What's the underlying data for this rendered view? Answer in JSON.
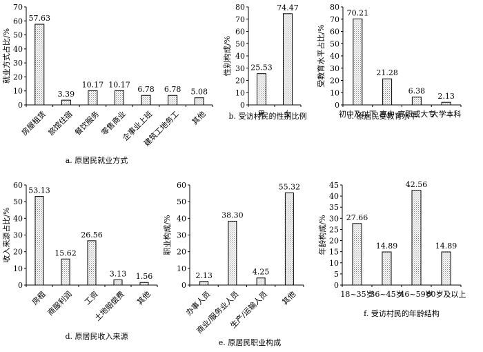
{
  "chart_data": [
    {
      "id": "a",
      "type": "bar",
      "caption": "a. 原居民就业方式",
      "ylabel": "就业方式占比/%",
      "ylim": [
        0,
        70
      ],
      "yticks": [
        0,
        10,
        20,
        30,
        40,
        50,
        60,
        70
      ],
      "categories": [
        "房屋租赁",
        "旅馆住宿",
        "餐饮服务",
        "零售商业",
        "企事业上班",
        "建筑工地务工",
        "其他"
      ],
      "values": [
        57.63,
        3.39,
        10.17,
        10.17,
        6.78,
        6.78,
        5.08
      ],
      "value_labels": [
        "57.63",
        "3.39",
        "10.17",
        "10.17",
        "6.78",
        "6.78",
        "5.08"
      ],
      "x_label_rotation": "45deg"
    },
    {
      "id": "b",
      "type": "bar",
      "caption": "b. 受访村民的性别比例",
      "ylabel": "性别构成/%",
      "ylim": [
        0,
        80
      ],
      "yticks": [
        0,
        10,
        20,
        30,
        40,
        50,
        60,
        70,
        80
      ],
      "categories": [
        "男",
        "女"
      ],
      "values": [
        25.53,
        74.47
      ],
      "value_labels": [
        "25.53",
        "74.47"
      ],
      "x_label_rotation": "none"
    },
    {
      "id": "c",
      "type": "bar",
      "caption": "c. 原居民受教育水平",
      "ylabel": "受教育水平占比/%",
      "ylim": [
        0,
        80
      ],
      "yticks": [
        0,
        10,
        20,
        30,
        40,
        50,
        60,
        70,
        80
      ],
      "categories": [
        "初中及以下",
        "高中",
        "高职或大专",
        "大学本科"
      ],
      "values": [
        70.21,
        21.28,
        6.38,
        2.13
      ],
      "value_labels": [
        "70.21",
        "21.28",
        "6.38",
        "2.13"
      ],
      "x_label_rotation": "none"
    },
    {
      "id": "d",
      "type": "bar",
      "caption": "d. 原居民收入来源",
      "ylabel": "收入来源占比/%",
      "ylim": [
        0,
        60
      ],
      "yticks": [
        0,
        10,
        20,
        30,
        40,
        50,
        60
      ],
      "categories": [
        "房租",
        "商服利润",
        "工资",
        "土地赔偿费",
        "其他"
      ],
      "values": [
        53.13,
        15.62,
        26.56,
        3.13,
        1.56
      ],
      "value_labels": [
        "53.13",
        "15.62",
        "26.56",
        "3.13",
        "1.56"
      ],
      "x_label_rotation": "45deg"
    },
    {
      "id": "e",
      "type": "bar",
      "caption": "e. 原居民职业构成",
      "ylabel": "职业构成/%",
      "ylim": [
        0,
        60
      ],
      "yticks": [
        0,
        10,
        20,
        30,
        40,
        50,
        60
      ],
      "categories": [
        "办事人员",
        "商业/服务业人员",
        "生产/运输人员",
        "其他"
      ],
      "values": [
        2.13,
        38.3,
        4.25,
        55.32
      ],
      "value_labels": [
        "2.13",
        "38.30",
        "4.25",
        "55.32"
      ],
      "x_label_rotation": "45deg"
    },
    {
      "id": "f",
      "type": "bar",
      "caption": "f. 受访村民的年龄结构",
      "ylabel": "年龄构成/%",
      "ylim": [
        0,
        45
      ],
      "yticks": [
        0,
        5,
        10,
        15,
        20,
        25,
        30,
        35,
        40,
        45
      ],
      "categories": [
        "18~35岁",
        "36~45岁",
        "46~59岁",
        "60岁及以上"
      ],
      "values": [
        27.66,
        14.89,
        42.56,
        14.89
      ],
      "value_labels": [
        "27.66",
        "14.89",
        "42.56",
        "14.89"
      ],
      "x_label_rotation": "none"
    }
  ],
  "style": {
    "bar_fill": "#d9d9d9",
    "bar_stroke": "#000000",
    "axis_color": "#000000"
  }
}
